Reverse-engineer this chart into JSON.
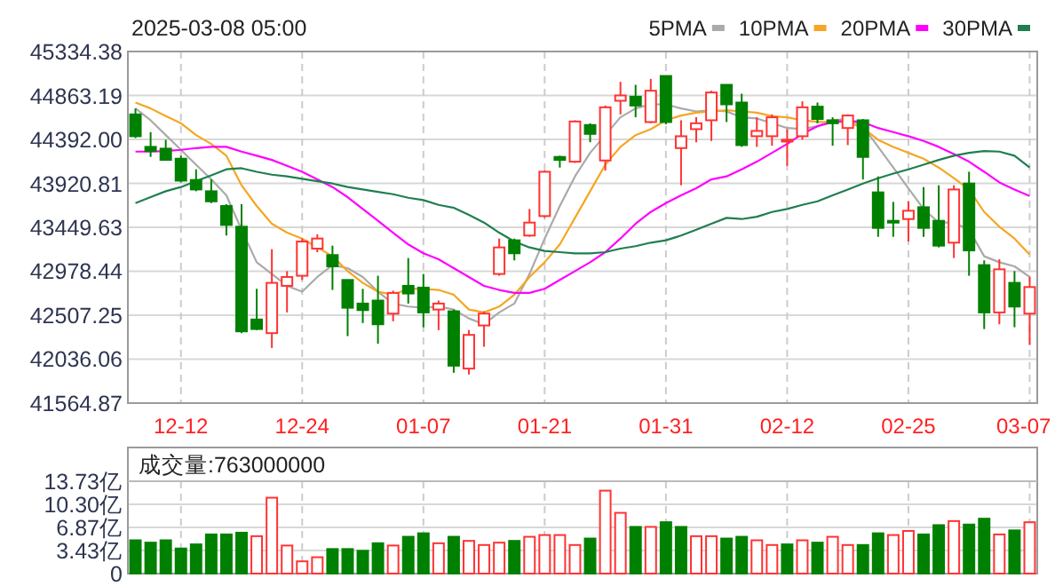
{
  "chart_data": [
    {
      "type": "candlestick",
      "title": "2025-03-08 05:00",
      "categories": [
        null,
        null,
        null,
        "12-12",
        null,
        null,
        null,
        null,
        null,
        null,
        null,
        "12-24",
        null,
        null,
        null,
        null,
        null,
        null,
        null,
        "01-07",
        null,
        null,
        null,
        null,
        null,
        null,
        null,
        "01-21",
        null,
        null,
        null,
        null,
        null,
        null,
        null,
        "01-31",
        null,
        null,
        null,
        null,
        null,
        null,
        null,
        "02-12",
        null,
        null,
        null,
        null,
        null,
        null,
        null,
        "02-25",
        null,
        null,
        null,
        null,
        null,
        null,
        null,
        "03-07"
      ],
      "ohlc": [
        [
          44660,
          44724,
          44407,
          44426
        ],
        [
          44312,
          44470,
          44204,
          44267
        ],
        [
          44293,
          44388,
          44166,
          44172
        ],
        [
          44185,
          44217,
          43931,
          43950
        ],
        [
          43957,
          44071,
          43836,
          43855
        ],
        [
          43836,
          43963,
          43709,
          43728
        ],
        [
          43678,
          43697,
          43361,
          43475
        ],
        [
          43456,
          43697,
          42315,
          42334
        ],
        [
          42461,
          42790,
          42347,
          42359
        ],
        [
          42315,
          43215,
          42156,
          42854
        ],
        [
          42822,
          42980,
          42537,
          42917
        ],
        [
          42930,
          43329,
          42885,
          43297
        ],
        [
          43221,
          43374,
          43183,
          43329
        ],
        [
          43152,
          43253,
          42778,
          43031
        ],
        [
          42885,
          42885,
          42283,
          42587
        ],
        [
          42632,
          42790,
          42423,
          42562
        ],
        [
          42664,
          42930,
          42201,
          42410
        ],
        [
          42524,
          42771,
          42442,
          42746
        ],
        [
          42822,
          43120,
          42632,
          42740
        ],
        [
          42803,
          42949,
          42378,
          42537
        ],
        [
          42568,
          42664,
          42347,
          42632
        ],
        [
          42549,
          42568,
          41890,
          41966
        ],
        [
          41935,
          42347,
          41871,
          42296
        ],
        [
          42397,
          42549,
          42169,
          42524
        ],
        [
          42949,
          43329,
          42930,
          43234
        ],
        [
          43310,
          43329,
          43095,
          43171
        ],
        [
          43361,
          43646,
          43348,
          43500
        ],
        [
          43570,
          44058,
          43551,
          44045
        ],
        [
          44204,
          44217,
          44090,
          44172
        ],
        [
          44153,
          44597,
          44140,
          44584
        ],
        [
          44546,
          44565,
          44362,
          44451
        ],
        [
          44166,
          44755,
          44058,
          44736
        ],
        [
          44806,
          45009,
          44660,
          44863
        ],
        [
          44850,
          44977,
          44629,
          44755
        ],
        [
          44578,
          45041,
          44565,
          44914
        ],
        [
          45072,
          45072,
          44553,
          44578
        ],
        [
          44299,
          44597,
          43900,
          44426
        ],
        [
          44502,
          44629,
          44362,
          44565
        ],
        [
          44597,
          44914,
          44375,
          44895
        ],
        [
          44977,
          44977,
          44578,
          44768
        ],
        [
          44787,
          44882,
          44312,
          44331
        ],
        [
          44426,
          44629,
          44312,
          44483
        ],
        [
          44426,
          44660,
          44324,
          44629
        ],
        [
          44375,
          44502,
          44109,
          44388
        ],
        [
          44426,
          44800,
          44388,
          44736
        ],
        [
          44743,
          44787,
          44565,
          44610
        ],
        [
          44597,
          44629,
          44324,
          44565
        ],
        [
          44514,
          44660,
          44331,
          44648
        ],
        [
          44597,
          44610,
          43963,
          44204
        ],
        [
          43824,
          43995,
          43348,
          43443
        ],
        [
          43519,
          43722,
          43348,
          43500
        ],
        [
          43538,
          43728,
          43297,
          43627
        ],
        [
          43665,
          43881,
          43348,
          43443
        ],
        [
          43519,
          43900,
          43234,
          43253
        ],
        [
          43285,
          43900,
          43120,
          43855
        ],
        [
          43919,
          44045,
          42930,
          43202
        ],
        [
          43044,
          43095,
          42359,
          42537
        ],
        [
          42537,
          43107,
          42410,
          42999
        ],
        [
          42854,
          42980,
          42378,
          42600
        ],
        [
          42524,
          42917,
          42188,
          42809
        ]
      ],
      "colors": [
        "#008000",
        "#008000",
        "#008000",
        "#008000",
        "#008000",
        "#008000",
        "#008000",
        "#008000",
        "#008000",
        "#ff3333",
        "#ff3333",
        "#ff3333",
        "#ff3333",
        "#008000",
        "#008000",
        "#008000",
        "#008000",
        "#ff3333",
        "#008000",
        "#008000",
        "#ff3333",
        "#008000",
        "#ff3333",
        "#ff3333",
        "#ff3333",
        "#008000",
        "#ff3333",
        "#ff3333",
        "#008000",
        "#ff3333",
        "#008000",
        "#ff3333",
        "#ff3333",
        "#008000",
        "#ff3333",
        "#008000",
        "#ff3333",
        "#ff3333",
        "#ff3333",
        "#008000",
        "#008000",
        "#ff3333",
        "#ff3333",
        "#ff3333",
        "#ff3333",
        "#008000",
        "#008000",
        "#ff3333",
        "#008000",
        "#008000",
        "#008000",
        "#ff3333",
        "#008000",
        "#008000",
        "#ff3333",
        "#008000",
        "#008000",
        "#ff3333",
        "#008000",
        "#ff3333"
      ],
      "series": [
        {
          "type": "line",
          "name": "5PMA",
          "color": "#aaaaaa",
          "values": [
            44724,
            44597,
            44438,
            44280,
            44121,
            43963,
            43792,
            43424,
            43075,
            42949,
            42822,
            42759,
            42917,
            43044,
            43012,
            42917,
            42759,
            42632,
            42600,
            42587,
            42600,
            42568,
            42473,
            42410,
            42537,
            42632,
            42949,
            43329,
            43678,
            43995,
            44248,
            44438,
            44629,
            44724,
            44768,
            44768,
            44724,
            44692,
            44705,
            44692,
            44629,
            44616,
            44565,
            44514,
            44502,
            44533,
            44597,
            44610,
            44533,
            44312,
            44090,
            43868,
            43646,
            43500,
            43500,
            43424,
            43139,
            43075,
            43031,
            42917
          ]
        },
        {
          "type": "line",
          "name": "10PMA",
          "color": "#f5a623",
          "values": [
            44787,
            44724,
            44641,
            44565,
            44438,
            44343,
            44217,
            43900,
            43678,
            43488,
            43392,
            43329,
            43234,
            43139,
            42980,
            42854,
            42759,
            42727,
            42790,
            42790,
            42778,
            42727,
            42568,
            42537,
            42600,
            42727,
            42917,
            43075,
            43266,
            43551,
            43836,
            44121,
            44312,
            44438,
            44502,
            44597,
            44648,
            44679,
            44692,
            44705,
            44692,
            44679,
            44641,
            44629,
            44597,
            44578,
            44578,
            44578,
            44514,
            44388,
            44312,
            44248,
            44185,
            44090,
            43976,
            43855,
            43614,
            43456,
            43329,
            43158
          ]
        },
        {
          "type": "line",
          "name": "20PMA",
          "color": "#ff00ff",
          "values": [
            44261,
            44261,
            44267,
            44280,
            44299,
            44312,
            44312,
            44261,
            44217,
            44172,
            44109,
            44045,
            43963,
            43881,
            43773,
            43646,
            43519,
            43392,
            43266,
            43171,
            43107,
            43012,
            42917,
            42822,
            42778,
            42746,
            42746,
            42790,
            42885,
            42980,
            43075,
            43183,
            43329,
            43488,
            43614,
            43709,
            43792,
            43868,
            43963,
            43995,
            44071,
            44153,
            44248,
            44343,
            44451,
            44533,
            44578,
            44591,
            44578,
            44514,
            44470,
            44426,
            44375,
            44312,
            44236,
            44153,
            44045,
            43931,
            43855,
            43786
          ]
        },
        {
          "type": "line",
          "name": "30PMA",
          "color": "#1f7f4f",
          "values": [
            43709,
            43773,
            43836,
            43881,
            43944,
            44007,
            44071,
            44083,
            44045,
            44014,
            43995,
            43969,
            43944,
            43919,
            43881,
            43855,
            43830,
            43804,
            43766,
            43741,
            43690,
            43659,
            43583,
            43500,
            43392,
            43297,
            43234,
            43196,
            43183,
            43171,
            43171,
            43183,
            43221,
            43247,
            43285,
            43310,
            43361,
            43424,
            43488,
            43551,
            43538,
            43563,
            43614,
            43646,
            43690,
            43728,
            43792,
            43855,
            43919,
            43976,
            44026,
            44071,
            44121,
            44172,
            44217,
            44248,
            44267,
            44261,
            44217,
            44090
          ]
        }
      ],
      "ylim": [
        41564.87,
        45334.38
      ],
      "yticks": [
        {
          "value": 41564.87,
          "label": "41564.87"
        },
        {
          "value": 42036.06,
          "label": "42036.06"
        },
        {
          "value": 42507.25,
          "label": "42507.25"
        },
        {
          "value": 42978.44,
          "label": "42978.44"
        },
        {
          "value": 43449.63,
          "label": "43449.63"
        },
        {
          "value": 43920.81,
          "label": "43920.81"
        },
        {
          "value": 44392.0,
          "label": "44392.00"
        },
        {
          "value": 44863.19,
          "label": "44863.19"
        },
        {
          "value": 45334.38,
          "label": "45334.38"
        }
      ],
      "grid": true,
      "legend": "top right",
      "marker": "none",
      "line_style": "solid"
    },
    {
      "type": "bar",
      "title": "成交量:763000000",
      "categories": [
        null,
        null,
        null,
        null,
        null,
        null,
        null,
        null,
        null,
        null,
        null,
        null,
        null,
        null,
        null,
        null,
        null,
        null,
        null,
        null,
        null,
        null,
        null,
        null,
        null,
        null,
        null,
        null,
        null,
        null,
        null,
        null,
        null,
        null,
        null,
        null,
        null,
        null,
        null,
        null,
        null,
        null,
        null,
        null,
        null,
        null,
        null,
        null,
        null,
        null,
        null,
        null,
        null,
        null,
        null,
        null,
        null,
        null,
        null,
        null
      ],
      "values": [
        4.95,
        4.6,
        4.95,
        3.73,
        4.34,
        5.82,
        5.82,
        6.08,
        5.56,
        11.28,
        4.17,
        1.82,
        2.43,
        3.65,
        3.65,
        3.39,
        4.51,
        4.17,
        5.47,
        5.99,
        4.51,
        5.47,
        4.86,
        4.25,
        4.6,
        4.86,
        5.47,
        5.73,
        5.73,
        4.25,
        5.21,
        12.33,
        9.03,
        6.94,
        6.94,
        7.64,
        6.94,
        5.56,
        5.56,
        5.21,
        5.47,
        4.95,
        4.25,
        4.34,
        4.95,
        4.6,
        5.47,
        4.25,
        4.25,
        5.99,
        5.73,
        6.34,
        5.82,
        7.2,
        7.81,
        7.29,
        8.16,
        5.82,
        6.42,
        7.63
      ],
      "colors": [
        "#008000",
        "#008000",
        "#008000",
        "#008000",
        "#008000",
        "#008000",
        "#008000",
        "#008000",
        "#ff3333",
        "#ff3333",
        "#ff3333",
        "#ff3333",
        "#ff3333",
        "#008000",
        "#008000",
        "#008000",
        "#008000",
        "#ff3333",
        "#008000",
        "#008000",
        "#ff3333",
        "#008000",
        "#ff3333",
        "#ff3333",
        "#ff3333",
        "#008000",
        "#ff3333",
        "#ff3333",
        "#ff3333",
        "#ff3333",
        "#008000",
        "#ff3333",
        "#ff3333",
        "#008000",
        "#ff3333",
        "#008000",
        "#008000",
        "#ff3333",
        "#ff3333",
        "#008000",
        "#008000",
        "#ff3333",
        "#ff3333",
        "#008000",
        "#ff3333",
        "#008000",
        "#ff3333",
        "#ff3333",
        "#008000",
        "#008000",
        "#ff3333",
        "#ff3333",
        "#008000",
        "#008000",
        "#ff3333",
        "#008000",
        "#008000",
        "#ff3333",
        "#008000",
        "#ff3333"
      ],
      "ylim": [
        0,
        13.73
      ],
      "yticks": [
        {
          "value": 0,
          "label": "0"
        },
        {
          "value": 3.43,
          "label": "3.43亿"
        },
        {
          "value": 6.87,
          "label": "6.87亿"
        },
        {
          "value": 10.3,
          "label": "10.30亿"
        },
        {
          "value": 13.73,
          "label": "13.73亿"
        }
      ],
      "grid": true,
      "tick_labels": "y"
    }
  ]
}
